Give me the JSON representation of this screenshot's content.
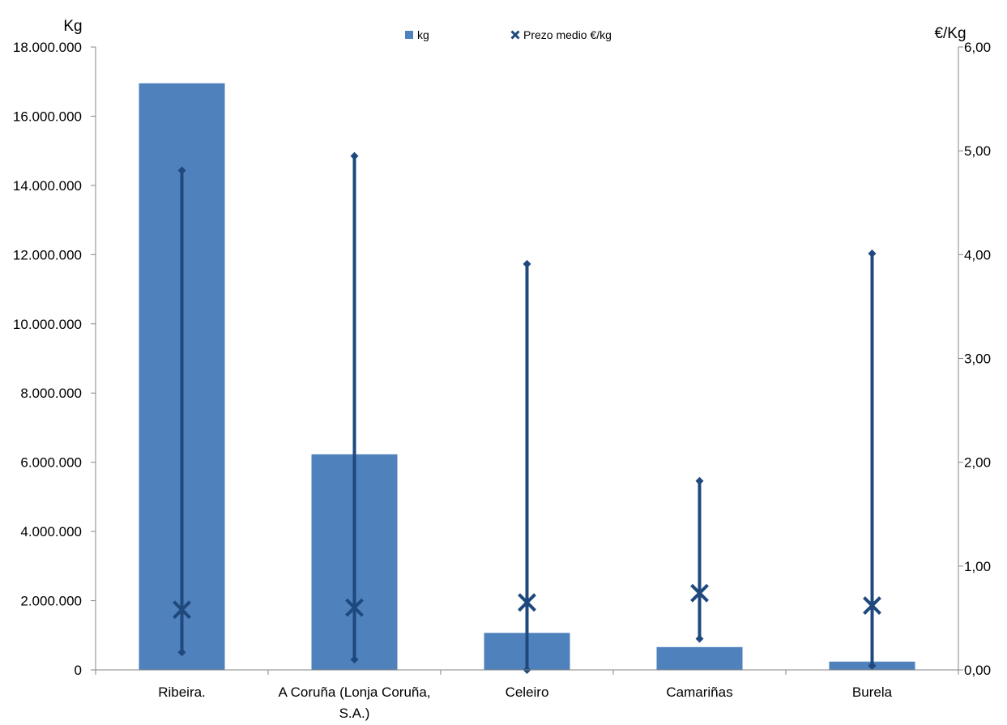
{
  "chart_data": {
    "type": "bar",
    "left_axis_unit": "Kg",
    "right_axis_unit": "€/Kg",
    "categories": [
      [
        "Ribeira."
      ],
      [
        "A Coruña (Lonja Coruña,",
        "S.A.)"
      ],
      [
        "Celeiro"
      ],
      [
        "Camariñas"
      ],
      [
        "Burela"
      ]
    ],
    "left_ylim": [
      0,
      18000000
    ],
    "left_ticks": [
      0,
      2000000,
      4000000,
      6000000,
      8000000,
      10000000,
      12000000,
      14000000,
      16000000,
      18000000
    ],
    "left_tick_labels": [
      "0",
      "2.000.000",
      "4.000.000",
      "6.000.000",
      "8.000.000",
      "10.000.000",
      "12.000.000",
      "14.000.000",
      "16.000.000",
      "18.000.000"
    ],
    "right_ylim": [
      0,
      6
    ],
    "right_ticks": [
      0,
      1,
      2,
      3,
      4,
      5,
      6
    ],
    "right_tick_labels": [
      "0,00",
      "1,00",
      "2,00",
      "3,00",
      "4,00",
      "5,00",
      "6,00"
    ],
    "grid": false,
    "legend_position": "top-center",
    "series": [
      {
        "name": "kg",
        "type": "bar",
        "axis": "left",
        "color": "#4f81bd",
        "values": [
          16950000,
          6230000,
          1070000,
          660000,
          240000
        ]
      },
      {
        "name": "Prezo medio €/kg",
        "type": "high-low-average",
        "axis": "right",
        "color": "#1f497d",
        "average": [
          0.58,
          0.6,
          0.65,
          0.74,
          0.62
        ],
        "low": [
          0.17,
          0.1,
          0.0,
          0.3,
          0.04
        ],
        "high": [
          4.81,
          4.95,
          3.91,
          1.82,
          4.01
        ]
      }
    ]
  }
}
